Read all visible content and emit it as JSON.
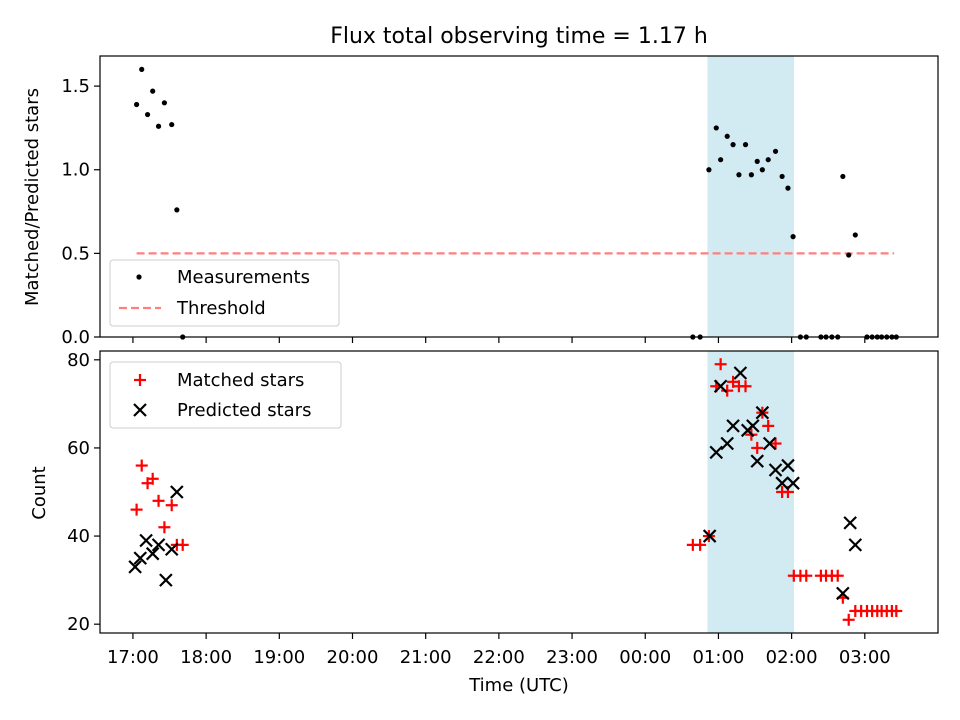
{
  "chart_data": {
    "type": "scatter",
    "title": "Flux total observing time = 1.17 h",
    "xlabel": "Time (UTC)",
    "x_tick_labels": [
      "17:00",
      "18:00",
      "19:00",
      "20:00",
      "21:00",
      "22:00",
      "23:00",
      "00:00",
      "01:00",
      "02:00",
      "03:00"
    ],
    "x_tick_hours": [
      17,
      18,
      19,
      20,
      21,
      22,
      23,
      24,
      25,
      26,
      27
    ],
    "xlim_hours": [
      16.55,
      28.0
    ],
    "highlight_span_hours": [
      24.85,
      26.033
    ],
    "highlight_color": "#add8e6",
    "panels": [
      {
        "ylabel": "Matched/Predicted stars",
        "ylim": [
          0,
          1.68
        ],
        "yticks": [
          0,
          0.5,
          1.0,
          1.5
        ],
        "ytick_labels": [
          "0.0",
          "0.5",
          "1.0",
          "1.5"
        ],
        "legend_position": "lower-left",
        "threshold": {
          "name": "Threshold",
          "value": 0.5,
          "x_range_hours": [
            17.05,
            27.4
          ],
          "color": "#ff7f7f"
        },
        "series": [
          {
            "name": "Measurements",
            "marker": "dot",
            "color": "#000000",
            "points": [
              [
                17.05,
                1.39
              ],
              [
                17.12,
                1.6
              ],
              [
                17.2,
                1.33
              ],
              [
                17.27,
                1.47
              ],
              [
                17.35,
                1.26
              ],
              [
                17.43,
                1.4
              ],
              [
                17.53,
                1.27
              ],
              [
                17.6,
                0.76
              ],
              [
                17.68,
                0.0
              ],
              [
                24.65,
                0.0
              ],
              [
                24.75,
                0.0
              ],
              [
                24.87,
                1.0
              ],
              [
                24.97,
                1.25
              ],
              [
                25.03,
                1.06
              ],
              [
                25.12,
                1.2
              ],
              [
                25.2,
                1.15
              ],
              [
                25.28,
                0.97
              ],
              [
                25.37,
                1.15
              ],
              [
                25.45,
                0.97
              ],
              [
                25.53,
                1.05
              ],
              [
                25.6,
                1.0
              ],
              [
                25.68,
                1.06
              ],
              [
                25.78,
                1.11
              ],
              [
                25.87,
                0.96
              ],
              [
                25.95,
                0.89
              ],
              [
                26.02,
                0.6
              ],
              [
                26.12,
                0.0
              ],
              [
                26.2,
                0.0
              ],
              [
                26.4,
                0.0
              ],
              [
                26.47,
                0.0
              ],
              [
                26.55,
                0.0
              ],
              [
                26.63,
                0.0
              ],
              [
                26.7,
                0.96
              ],
              [
                26.78,
                0.49
              ],
              [
                26.87,
                0.61
              ],
              [
                27.03,
                0.0
              ],
              [
                27.1,
                0.0
              ],
              [
                27.17,
                0.0
              ],
              [
                27.23,
                0.0
              ],
              [
                27.3,
                0.0
              ],
              [
                27.37,
                0.0
              ],
              [
                27.43,
                0.0
              ]
            ]
          }
        ]
      },
      {
        "ylabel": "Count",
        "ylim": [
          18,
          82
        ],
        "yticks": [
          20,
          40,
          60,
          80
        ],
        "ytick_labels": [
          "20",
          "40",
          "60",
          "80"
        ],
        "legend_position": "upper-left",
        "series": [
          {
            "name": "Matched stars",
            "marker": "plus",
            "color": "#ff0000",
            "points": [
              [
                17.05,
                46
              ],
              [
                17.12,
                56
              ],
              [
                17.2,
                52
              ],
              [
                17.27,
                53
              ],
              [
                17.35,
                48
              ],
              [
                17.43,
                42
              ],
              [
                17.53,
                47
              ],
              [
                17.6,
                38
              ],
              [
                17.68,
                38
              ],
              [
                24.65,
                38
              ],
              [
                24.75,
                38
              ],
              [
                24.87,
                40
              ],
              [
                24.97,
                74
              ],
              [
                25.03,
                79
              ],
              [
                25.12,
                73
              ],
              [
                25.2,
                75
              ],
              [
                25.28,
                74
              ],
              [
                25.37,
                74
              ],
              [
                25.45,
                63
              ],
              [
                25.53,
                60
              ],
              [
                25.6,
                68
              ],
              [
                25.68,
                65
              ],
              [
                25.78,
                61
              ],
              [
                25.87,
                50
              ],
              [
                25.95,
                50
              ],
              [
                26.03,
                31
              ],
              [
                26.12,
                31
              ],
              [
                26.2,
                31
              ],
              [
                26.4,
                31
              ],
              [
                26.47,
                31
              ],
              [
                26.55,
                31
              ],
              [
                26.63,
                31
              ],
              [
                26.7,
                26
              ],
              [
                26.78,
                21
              ],
              [
                26.87,
                23
              ],
              [
                26.95,
                23
              ],
              [
                27.03,
                23
              ],
              [
                27.1,
                23
              ],
              [
                27.17,
                23
              ],
              [
                27.23,
                23
              ],
              [
                27.3,
                23
              ],
              [
                27.37,
                23
              ],
              [
                27.43,
                23
              ]
            ]
          },
          {
            "name": "Predicted stars",
            "marker": "x",
            "color": "#000000",
            "points": [
              [
                17.03,
                33
              ],
              [
                17.1,
                35
              ],
              [
                17.18,
                39
              ],
              [
                17.27,
                36
              ],
              [
                17.35,
                38
              ],
              [
                17.45,
                30
              ],
              [
                17.53,
                37
              ],
              [
                17.6,
                50
              ],
              [
                24.88,
                40
              ],
              [
                24.97,
                59
              ],
              [
                25.03,
                74
              ],
              [
                25.12,
                61
              ],
              [
                25.2,
                65
              ],
              [
                25.3,
                77
              ],
              [
                25.4,
                64
              ],
              [
                25.47,
                65
              ],
              [
                25.53,
                57
              ],
              [
                25.6,
                68
              ],
              [
                25.7,
                61
              ],
              [
                25.78,
                55
              ],
              [
                25.87,
                52
              ],
              [
                25.95,
                56
              ],
              [
                26.02,
                52
              ],
              [
                26.7,
                27
              ],
              [
                26.8,
                43
              ],
              [
                26.87,
                38
              ]
            ]
          }
        ]
      }
    ]
  }
}
